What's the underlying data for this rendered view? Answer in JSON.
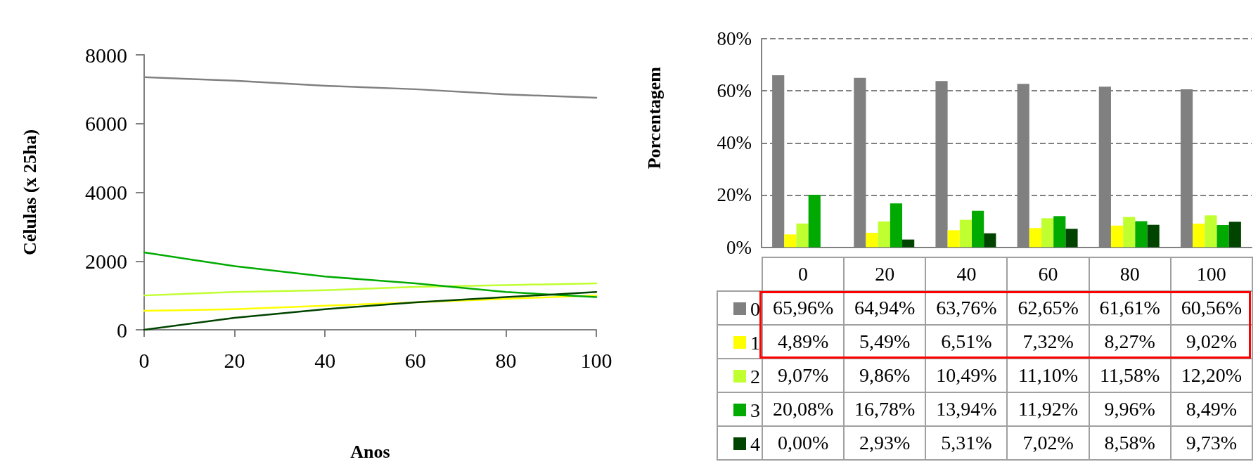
{
  "chart_data": [
    {
      "type": "line",
      "xlabel": "Anos",
      "ylabel": "Células (x 25ha)",
      "x": [
        0,
        20,
        40,
        60,
        80,
        100
      ],
      "xlim": [
        0,
        100
      ],
      "xticks": [
        0,
        20,
        40,
        60,
        80,
        100
      ],
      "ylim": [
        0,
        8000
      ],
      "yticks": [
        0,
        2000,
        4000,
        6000,
        8000
      ],
      "grid": false,
      "marker": "none",
      "line_style": "solid",
      "series": [
        {
          "color": "#808080",
          "values": [
            7350,
            7250,
            7100,
            7000,
            6850,
            6750
          ]
        },
        {
          "color": "#ffff00",
          "values": [
            550,
            600,
            700,
            800,
            900,
            1000
          ]
        },
        {
          "color": "#c0ff30",
          "values": [
            1000,
            1100,
            1150,
            1250,
            1300,
            1350
          ]
        },
        {
          "color": "#00aa00",
          "values": [
            2250,
            1850,
            1550,
            1350,
            1100,
            950
          ]
        },
        {
          "color": "#004400",
          "values": [
            0,
            350,
            600,
            800,
            950,
            1100
          ]
        }
      ]
    },
    {
      "type": "bar",
      "ylabel": "Porcentagem",
      "categories": [
        "0",
        "20",
        "40",
        "60",
        "80",
        "100"
      ],
      "ylim": [
        0,
        80
      ],
      "yticks": [
        {
          "value": 0,
          "label": "0%"
        },
        {
          "value": 20,
          "label": "20%"
        },
        {
          "value": 40,
          "label": "40%"
        },
        {
          "value": 60,
          "label": "60%"
        },
        {
          "value": 80,
          "label": "80%"
        }
      ],
      "grid": "y",
      "legend": "bottom left",
      "series": [
        {
          "name": "0",
          "color": "#808080",
          "values": [
            65.96,
            64.94,
            63.76,
            62.65,
            61.61,
            60.56
          ],
          "value_labels": [
            "65,96%",
            "64,94%",
            "63,76%",
            "62,65%",
            "61,61%",
            "60,56%"
          ]
        },
        {
          "name": "1",
          "color": "#ffff00",
          "values": [
            4.89,
            5.49,
            6.51,
            7.32,
            8.27,
            9.02
          ],
          "value_labels": [
            "4,89%",
            "5,49%",
            "6,51%",
            "7,32%",
            "8,27%",
            "9,02%"
          ]
        },
        {
          "name": "2",
          "color": "#c0ff30",
          "values": [
            9.07,
            9.86,
            10.49,
            11.1,
            11.58,
            12.2
          ],
          "value_labels": [
            "9,07%",
            "9,86%",
            "10,49%",
            "11,10%",
            "11,58%",
            "12,20%"
          ]
        },
        {
          "name": "3",
          "color": "#00aa00",
          "values": [
            20.08,
            16.78,
            13.94,
            11.92,
            9.96,
            8.49
          ],
          "value_labels": [
            "20,08%",
            "16,78%",
            "13,94%",
            "11,92%",
            "9,96%",
            "8,49%"
          ]
        },
        {
          "name": "4",
          "color": "#004400",
          "values": [
            0.0,
            2.93,
            5.31,
            7.02,
            8.58,
            9.73
          ],
          "value_labels": [
            "0,00%",
            "2,93%",
            "5,31%",
            "7,02%",
            "8,58%",
            "9,73%"
          ]
        }
      ]
    }
  ]
}
